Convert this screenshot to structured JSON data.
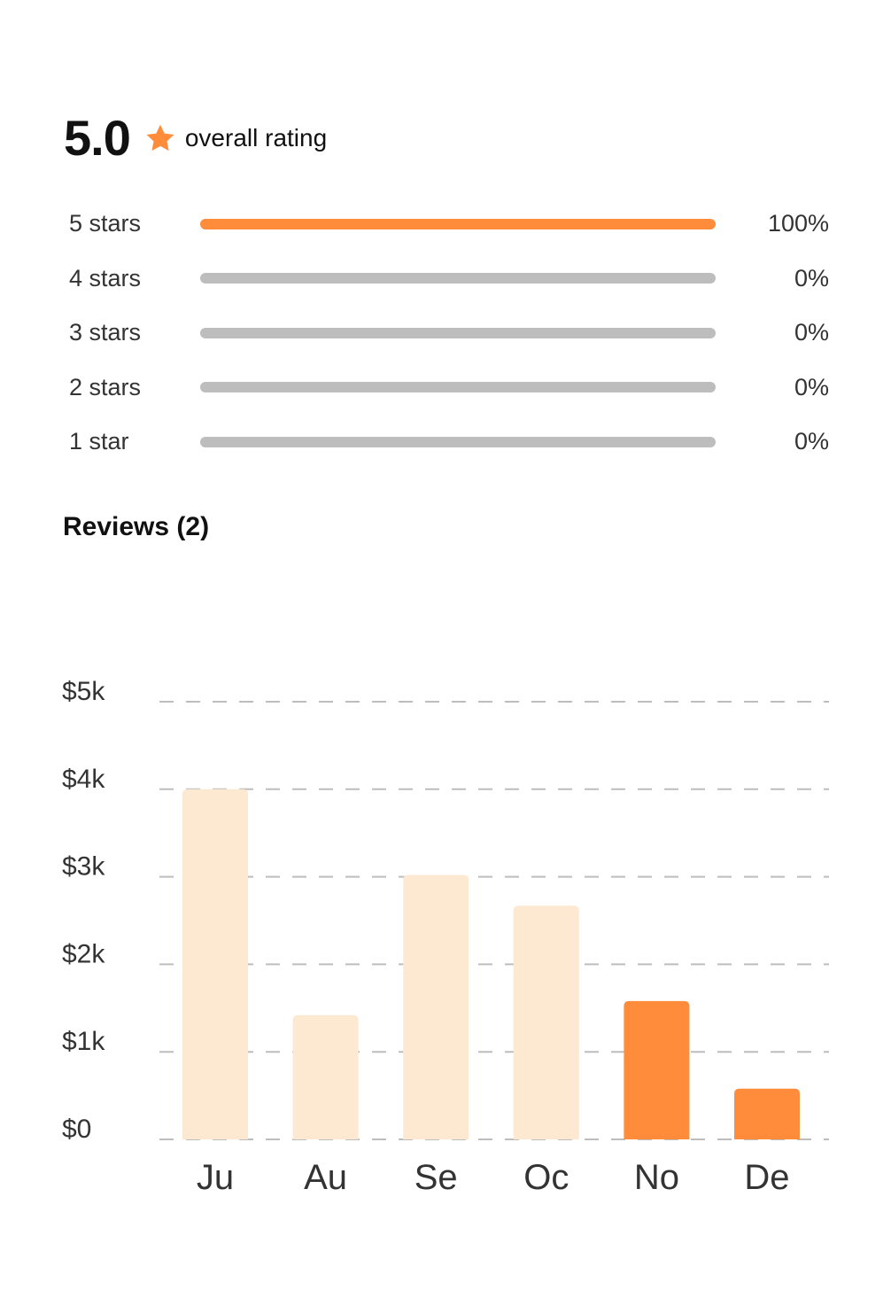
{
  "summary": {
    "score": "5.0",
    "label": "overall rating",
    "star_icon": "star-icon",
    "accent_color": "#FF8C3A"
  },
  "ratings": [
    {
      "label": "5 stars",
      "percent_label": "100%",
      "fraction": 1.0
    },
    {
      "label": "4 stars",
      "percent_label": "0%",
      "fraction": 0
    },
    {
      "label": "3 stars",
      "percent_label": "0%",
      "fraction": 0
    },
    {
      "label": "2 stars",
      "percent_label": "0%",
      "fraction": 0
    },
    {
      "label": "1 star",
      "percent_label": "0%",
      "fraction": 0
    }
  ],
  "reviews": {
    "title": "Reviews (2)"
  },
  "chart_data": {
    "type": "bar",
    "categories": [
      "Ju",
      "Au",
      "Se",
      "Oc",
      "No",
      "De"
    ],
    "values": [
      4000,
      1420,
      3020,
      2670,
      1580,
      580
    ],
    "highlighted": [
      false,
      false,
      false,
      false,
      true,
      true
    ],
    "y_ticks": [
      0,
      1000,
      2000,
      3000,
      4000,
      5000
    ],
    "y_tick_labels": [
      "$0",
      "$1k",
      "$2k",
      "$3k",
      "$4k",
      "$5k"
    ],
    "ylim": [
      0,
      5000
    ],
    "grid": true,
    "colors": {
      "bar": "#FDE9D2",
      "highlight": "#FF8C3A",
      "grid": "#bdbdbd"
    }
  }
}
